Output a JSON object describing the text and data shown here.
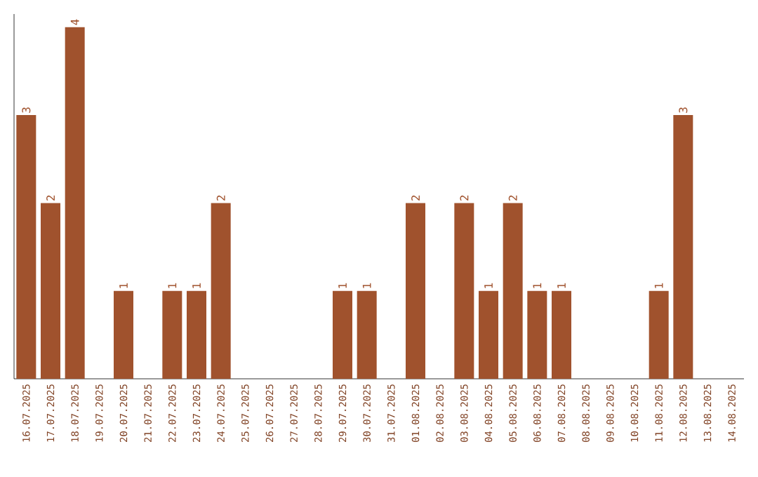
{
  "chart_data": {
    "type": "bar",
    "categories": [
      "16.07.2025",
      "17.07.2025",
      "18.07.2025",
      "19.07.2025",
      "20.07.2025",
      "21.07.2025",
      "22.07.2025",
      "23.07.2025",
      "24.07.2025",
      "25.07.2025",
      "26.07.2025",
      "27.07.2025",
      "28.07.2025",
      "29.07.2025",
      "30.07.2025",
      "31.07.2025",
      "01.08.2025",
      "02.08.2025",
      "03.08.2025",
      "04.08.2025",
      "05.08.2025",
      "06.08.2025",
      "07.08.2025",
      "08.08.2025",
      "09.08.2025",
      "10.08.2025",
      "11.08.2025",
      "12.08.2025",
      "13.08.2025",
      "14.08.2025"
    ],
    "values": [
      3,
      2,
      4,
      0,
      1,
      0,
      1,
      1,
      2,
      0,
      0,
      0,
      0,
      1,
      1,
      0,
      2,
      0,
      2,
      1,
      2,
      1,
      1,
      0,
      0,
      0,
      1,
      3,
      0,
      0
    ],
    "value_labels": [
      "3",
      "2",
      "4",
      null,
      "1",
      null,
      "1",
      "1",
      "2",
      null,
      null,
      null,
      null,
      "1",
      "1",
      null,
      "2",
      null,
      "2",
      "1",
      "2",
      "1",
      "1",
      null,
      null,
      null,
      "1",
      "3",
      null,
      null
    ],
    "color": "#a0522d",
    "ylim": [
      0,
      4.15
    ],
    "tick_labels": "x"
  }
}
